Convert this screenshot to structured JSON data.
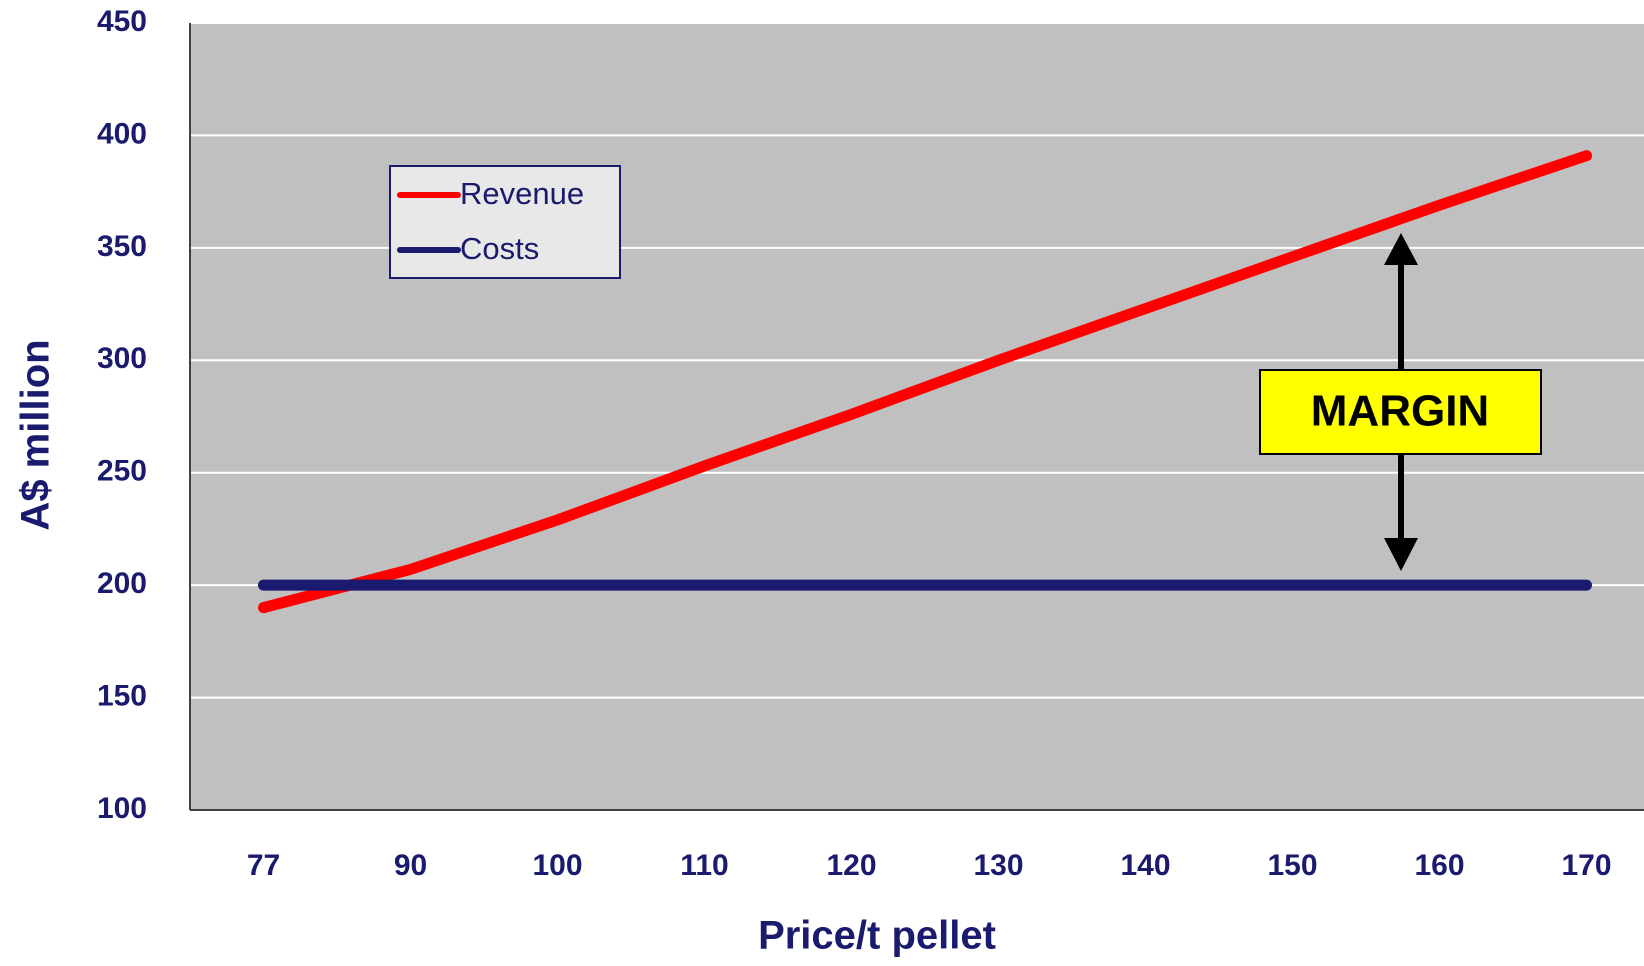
{
  "chart_data": {
    "type": "line",
    "xlabel": "Price/t pellet",
    "ylabel": "A$ million",
    "categories": [
      "77",
      "90",
      "100",
      "110",
      "120",
      "130",
      "140",
      "150",
      "160",
      "170"
    ],
    "series": [
      {
        "name": "Revenue",
        "color": "#ff0000",
        "values": [
          190,
          207,
          229,
          253,
          276,
          300,
          323,
          346,
          369,
          391
        ]
      },
      {
        "name": "Costs",
        "color": "#1a1a6e",
        "values": [
          200,
          200,
          200,
          200,
          200,
          200,
          200,
          200,
          200,
          200
        ]
      }
    ],
    "ylim": [
      100,
      450
    ],
    "yticks": [
      100,
      150,
      200,
      250,
      300,
      350,
      400,
      450
    ],
    "grid": true,
    "annotation": "MARGIN"
  }
}
